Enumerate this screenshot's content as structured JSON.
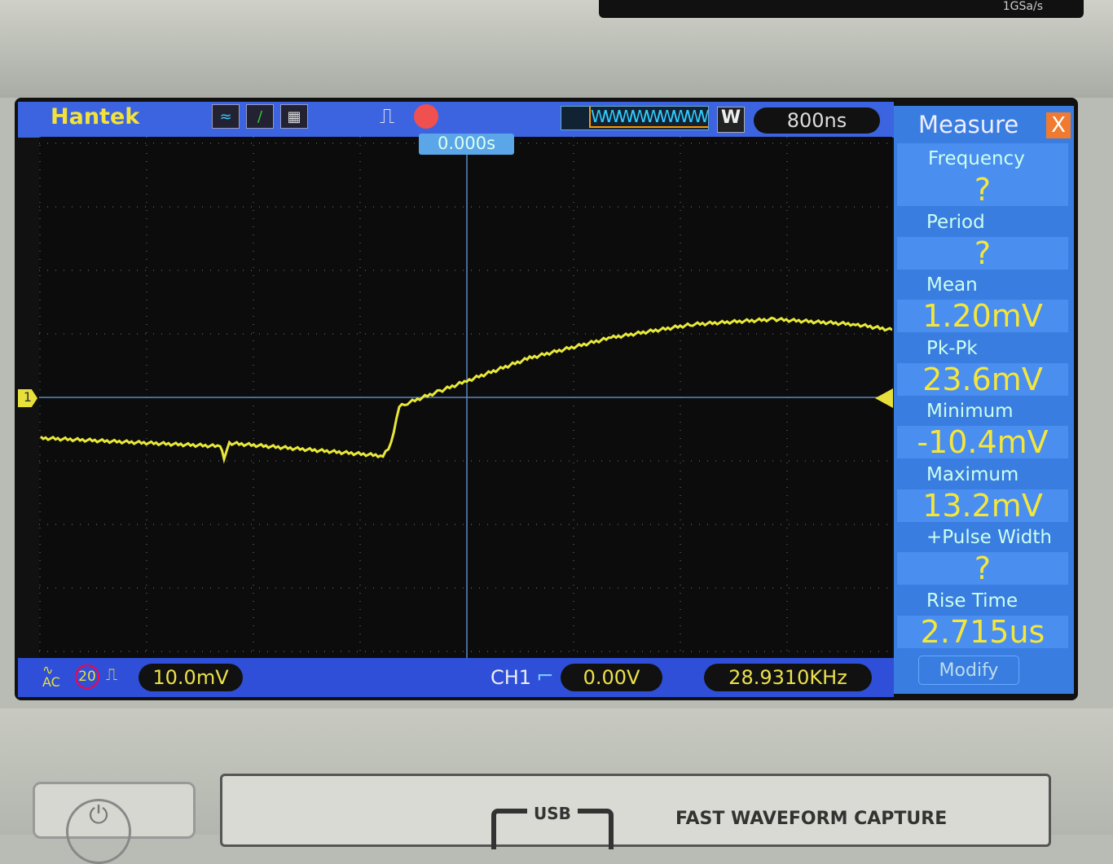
{
  "device": {
    "rate_label": "1GSa/s"
  },
  "topbar": {
    "logo": "Hantek",
    "timebase": "800ns",
    "trigger_position": "0.000s",
    "zoom_label": "W"
  },
  "measure": {
    "title": "Measure",
    "close": "X",
    "items": [
      {
        "label": "Frequency",
        "value": "?",
        "selected": true
      },
      {
        "label": "Period",
        "value": "?"
      },
      {
        "label": "Mean",
        "value": "1.20mV"
      },
      {
        "label": "Pk-Pk",
        "value": "23.6mV"
      },
      {
        "label": "Minimum",
        "value": "-10.4mV"
      },
      {
        "label": "Maximum",
        "value": "13.2mV"
      },
      {
        "label": "+Pulse Width",
        "value": "?"
      },
      {
        "label": "Rise Time",
        "value": "2.715us"
      }
    ],
    "modify": "Modify"
  },
  "bottombar": {
    "coupling": "AC",
    "bw_limit": "20",
    "volts_div": "10.0mV",
    "trigger_channel": "CH1",
    "trigger_level": "0.00V",
    "frequency": "28.9310KHz"
  },
  "channel_marker": "1",
  "panel": {
    "usb": "USB",
    "caption": "FAST WAVEFORM CAPTURE"
  },
  "colors": {
    "trace": "#e8e83a",
    "screen_bg": "#0c0c0c",
    "ui_blue": "#3c64e0",
    "measure_blue": "#3a7de0",
    "value_yellow": "#f4e63c"
  },
  "chart_data": {
    "type": "line",
    "xlabel": "",
    "ylabel": "",
    "x_unit": "ns",
    "y_unit": "mV",
    "xlim": [
      -3200,
      3200
    ],
    "ylim": [
      -40,
      40
    ],
    "x": [
      -3194,
      -1850,
      -1820,
      -1780,
      -629,
      -568,
      -507,
      -446,
      -202,
      0,
      470,
      1081,
      1692,
      2302,
      2913,
      3188
    ],
    "y": [
      -6.4,
      -7.7,
      -9.5,
      -7.2,
      -9.2,
      -7.3,
      -1.5,
      -0.9,
      1.0,
      2.6,
      6.2,
      9.4,
      11.5,
      12.3,
      11.5,
      10.6
    ]
  }
}
